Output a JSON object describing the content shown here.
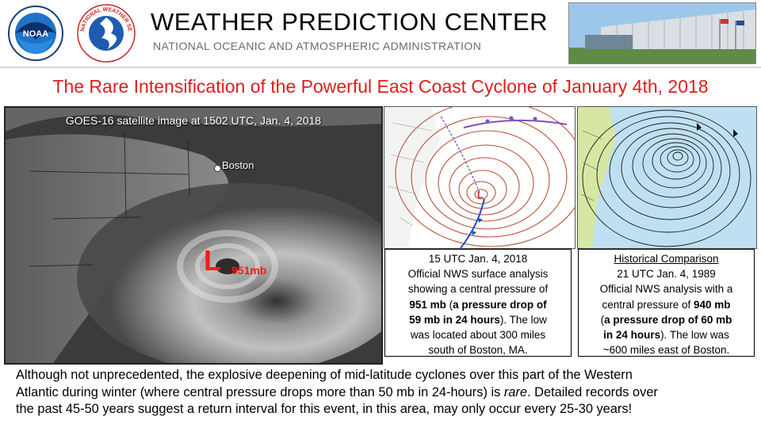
{
  "header": {
    "org_name": "WEATHER PREDICTION CENTER",
    "org_subtitle": "NATIONAL OCEANIC AND ATMOSPHERIC ADMINISTRATION",
    "noaa_logo_text": "NOAA",
    "nws_logo_text": "NATIONAL WEATHER SERVICE"
  },
  "title": "The Rare Intensification of the Powerful East Coast Cyclone of January 4th, 2018",
  "satellite": {
    "caption": "GOES-16 satellite image at 1502 UTC, Jan. 4, 2018",
    "city_label": "Boston",
    "low_symbol": "L",
    "low_pressure": "951mb"
  },
  "panel_2018": {
    "line1": "15 UTC Jan. 4, 2018",
    "line2": "Official NWS surface analysis",
    "line3": "showing a central pressure of",
    "line4_bold": "951 mb",
    "line4_rest": " (",
    "line4_bold2": "a pressure drop of",
    "line5_bold": "59 mb in 24 hours",
    "line5_rest": "). The low",
    "line6": "was located about 300 miles",
    "line7": "south of Boston, MA."
  },
  "panel_1989": {
    "heading": "Historical Comparison",
    "line1": "21 UTC Jan. 4, 1989",
    "line2": "Official NWS analysis with a",
    "line3_rest": "central pressure of ",
    "line3_bold": "940 mb",
    "line4_rest": "(",
    "line4_bold": "a pressure drop of 60 mb",
    "line5_bold": "in 24 hours",
    "line5_rest": "). The low was",
    "line6": "~600 miles east of Boston."
  },
  "bottom_text": {
    "line1": "Although not unprecedented, the explosive deepening of mid-latitude cyclones over this part of the Western",
    "line2_a": "Atlantic during winter (where central pressure drops more than 50 mb in 24-hours) is ",
    "line2_em": "rare",
    "line2_b": ". Detailed records over",
    "line3": "the past 45-50 years suggest a return interval for this event, in this area, may only occur every 25-30 years!"
  },
  "colors": {
    "title_red": "#e31b1b",
    "low_red": "#ff1a1a",
    "isobar_2018": "#b5553b",
    "isobar_1989": "#1a1a1a"
  }
}
